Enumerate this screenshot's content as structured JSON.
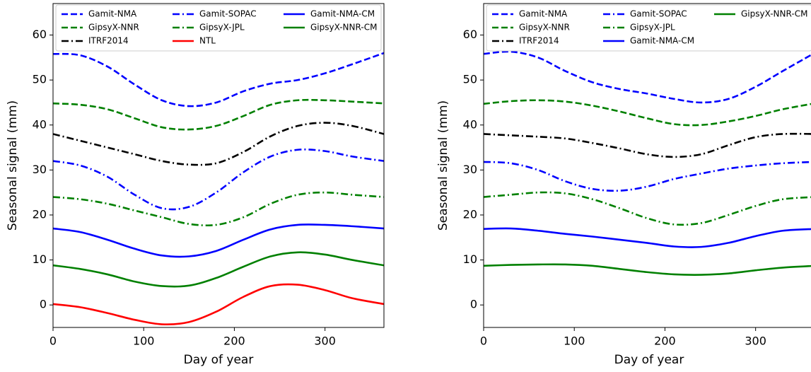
{
  "chart_data": [
    {
      "type": "line",
      "xlabel": "Day of year",
      "ylabel": "Seasonal signal (mm)",
      "x": [
        0,
        30,
        60,
        90,
        120,
        150,
        180,
        210,
        240,
        270,
        300,
        330,
        365
      ],
      "xlim": [
        0,
        365
      ],
      "ylim": [
        -5,
        67
      ],
      "xticks": [
        0,
        100,
        200,
        300
      ],
      "yticks": [
        0,
        10,
        20,
        30,
        40,
        50,
        60
      ],
      "legend_position": "upper center",
      "legend_columns": 3,
      "series": [
        {
          "name": "Gamit-NMA",
          "color": "#0000ff",
          "linestyle": "dashed",
          "values": [
            55.8,
            55.5,
            53,
            49,
            45.5,
            44.2,
            45,
            47.5,
            49.2,
            50,
            51.5,
            53.5,
            56
          ]
        },
        {
          "name": "GipsyX-NNR",
          "color": "#008000",
          "linestyle": "dashed",
          "values": [
            44.8,
            44.5,
            43.5,
            41.5,
            39.5,
            39,
            39.8,
            42,
            44.5,
            45.5,
            45.5,
            45.2,
            44.8
          ]
        },
        {
          "name": "ITRF2014",
          "color": "#000000",
          "linestyle": "dashdot",
          "values": [
            38,
            36.5,
            35,
            33.5,
            32,
            31.2,
            31.5,
            34,
            37.5,
            39.8,
            40.5,
            39.8,
            38
          ]
        },
        {
          "name": "Gamit-SOPAC",
          "color": "#0000ff",
          "linestyle": "dashdot",
          "values": [
            32,
            31,
            28.5,
            24.5,
            21.5,
            21.8,
            25,
            29.5,
            33,
            34.5,
            34.2,
            33,
            32
          ]
        },
        {
          "name": "GipsyX-JPL",
          "color": "#008000",
          "linestyle": "dashdot",
          "values": [
            24,
            23.5,
            22.5,
            21,
            19.5,
            18,
            17.8,
            19.5,
            22.5,
            24.5,
            25,
            24.5,
            24
          ]
        },
        {
          "name": "NTL",
          "color": "#ff0000",
          "linestyle": "solid",
          "values": [
            0.2,
            -0.5,
            -1.8,
            -3.3,
            -4.3,
            -3.8,
            -1.5,
            1.8,
            4.2,
            4.5,
            3.3,
            1.5,
            0.2
          ]
        },
        {
          "name": "Gamit-NMA-CM",
          "color": "#0000ff",
          "linestyle": "solid",
          "values": [
            17,
            16.2,
            14.5,
            12.5,
            11,
            10.8,
            12,
            14.5,
            16.8,
            17.8,
            17.8,
            17.5,
            17
          ]
        },
        {
          "name": "GipsyX-NNR-CM",
          "color": "#008000",
          "linestyle": "solid",
          "values": [
            8.8,
            8,
            6.8,
            5.2,
            4.2,
            4.3,
            6,
            8.5,
            10.8,
            11.7,
            11.2,
            10,
            8.8
          ]
        }
      ]
    },
    {
      "type": "line",
      "xlabel": "Day of year",
      "ylabel": "Seasonal signal (mm)",
      "x": [
        0,
        30,
        60,
        90,
        120,
        150,
        180,
        210,
        240,
        270,
        300,
        330,
        365
      ],
      "xlim": [
        0,
        365
      ],
      "ylim": [
        -5,
        67
      ],
      "xticks": [
        0,
        100,
        200,
        300
      ],
      "yticks": [
        0,
        10,
        20,
        30,
        40,
        50,
        60
      ],
      "legend_position": "upper center",
      "legend_columns": 3,
      "series": [
        {
          "name": "Gamit-NMA",
          "color": "#0000ff",
          "linestyle": "dashed",
          "values": [
            55.8,
            56.3,
            55,
            52,
            49.5,
            48,
            47,
            45.8,
            45,
            45.8,
            48.5,
            52,
            56
          ]
        },
        {
          "name": "GipsyX-NNR",
          "color": "#008000",
          "linestyle": "dashed",
          "values": [
            44.7,
            45.3,
            45.5,
            45.2,
            44.3,
            43,
            41.5,
            40.2,
            40,
            40.8,
            42,
            43.5,
            44.8
          ]
        },
        {
          "name": "ITRF2014",
          "color": "#000000",
          "linestyle": "dashdot",
          "values": [
            38,
            37.7,
            37.4,
            37,
            36,
            34.8,
            33.5,
            32.9,
            33.5,
            35.5,
            37.3,
            38,
            38
          ]
        },
        {
          "name": "Gamit-SOPAC",
          "color": "#0000ff",
          "linestyle": "dashdot",
          "values": [
            31.8,
            31.5,
            30,
            27.5,
            25.8,
            25.4,
            26.3,
            28,
            29.2,
            30.3,
            31,
            31.5,
            31.8
          ]
        },
        {
          "name": "GipsyX-JPL",
          "color": "#008000",
          "linestyle": "dashdot",
          "values": [
            24,
            24.5,
            25,
            24.8,
            23.5,
            21.5,
            19.3,
            17.9,
            18.2,
            20,
            22,
            23.5,
            24
          ]
        },
        {
          "name": "Gamit-NMA-CM",
          "color": "#0000ff",
          "linestyle": "solid",
          "values": [
            16.9,
            17,
            16.5,
            15.8,
            15.2,
            14.5,
            13.8,
            13,
            12.9,
            13.8,
            15.3,
            16.5,
            16.9
          ]
        },
        {
          "name": "GipsyX-NNR-CM",
          "color": "#008000",
          "linestyle": "solid",
          "values": [
            8.7,
            8.9,
            9,
            9,
            8.7,
            8,
            7.3,
            6.8,
            6.7,
            7,
            7.7,
            8.3,
            8.7
          ]
        }
      ]
    }
  ]
}
